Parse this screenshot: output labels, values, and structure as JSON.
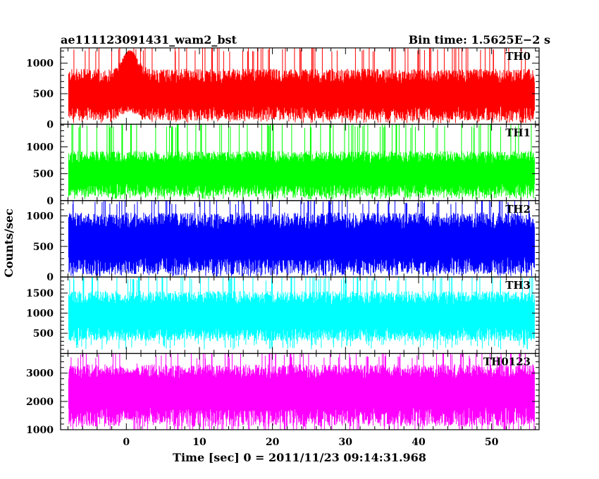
{
  "chart_data": {
    "type": "line",
    "title_left": "ae111123091431_wam2_bst",
    "title_right": "Bin time: 1.5625E−2 s",
    "xlabel": "Time [sec] 0 = 2011/11/23 09:14:31.968",
    "ylabel": "Counts/sec",
    "xlim": [
      -9,
      56.5
    ],
    "x_data_range": [
      -7.9,
      55.9
    ],
    "x_ticks": [
      0,
      10,
      20,
      30,
      40,
      50
    ],
    "panels": [
      {
        "name": "TH0",
        "color": "#ff0000",
        "ylim": [
          0,
          1250
        ],
        "y_ticks": [
          0,
          500,
          1000
        ],
        "baseline": 530,
        "spread": 260,
        "floor": 60,
        "burst": {
          "x": 0.5,
          "peak": 1250,
          "width": 1.4
        }
      },
      {
        "name": "TH1",
        "color": "#00ff00",
        "ylim": [
          0,
          1420
        ],
        "y_ticks": [
          0,
          500,
          1000
        ],
        "baseline": 560,
        "spread": 250,
        "floor": 70,
        "burst": null
      },
      {
        "name": "TH2",
        "color": "#0000ff",
        "ylim": [
          0,
          1250
        ],
        "y_ticks": [
          0,
          500,
          1000
        ],
        "baseline": 620,
        "spread": 300,
        "floor": 40,
        "burst": null
      },
      {
        "name": "TH3",
        "color": "#00ffff",
        "ylim": [
          0,
          1900
        ],
        "y_ticks": [
          500,
          1000,
          1500
        ],
        "baseline": 1000,
        "spread": 380,
        "floor": 300,
        "burst": null
      },
      {
        "name": "TH0123",
        "color": "#ff00ff",
        "ylim": [
          1000,
          3700
        ],
        "y_ticks": [
          1000,
          2000,
          3000
        ],
        "baseline": 2500,
        "spread": 560,
        "floor": 1100,
        "burst": {
          "x": 0.5,
          "peak": 3000,
          "width": 1.0
        }
      }
    ]
  }
}
